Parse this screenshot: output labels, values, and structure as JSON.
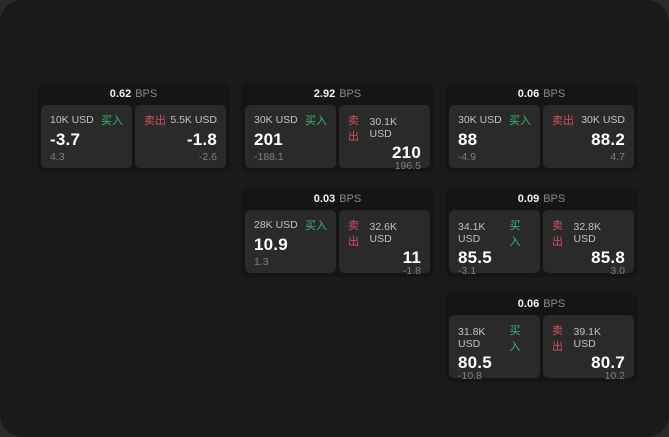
{
  "colors": {
    "background_outer": "#2a2a2a",
    "background_app": "#1a1a1b",
    "card_background": "#151516",
    "panel_background": "#2a2a2b",
    "buy_green": "#38b873",
    "sell_red": "#d4505f"
  },
  "cards": [
    {
      "bps_value": "0.62",
      "bps_unit": "BPS",
      "buy": {
        "amount": "10K USD",
        "side_label": "买入",
        "price": "-3.7",
        "delta": "4.3"
      },
      "sell": {
        "side_label": "卖出",
        "amount": "5.5K USD",
        "price": "-1.8",
        "delta": "-2.6"
      }
    },
    {
      "bps_value": "2.92",
      "bps_unit": "BPS",
      "buy": {
        "amount": "30K USD",
        "side_label": "买入",
        "price": "201",
        "delta": "-188.1"
      },
      "sell": {
        "side_label": "卖出",
        "amount": "30.1K USD",
        "price": "210",
        "delta": "196.5"
      }
    },
    {
      "bps_value": "0.06",
      "bps_unit": "BPS",
      "buy": {
        "amount": "30K USD",
        "side_label": "买入",
        "price": "88",
        "delta": "-4.9"
      },
      "sell": {
        "side_label": "卖出",
        "amount": "30K USD",
        "price": "88.2",
        "delta": "4.7"
      }
    },
    {
      "bps_value": "0.03",
      "bps_unit": "BPS",
      "buy": {
        "amount": "28K USD",
        "side_label": "买入",
        "price": "10.9",
        "delta": "1.3"
      },
      "sell": {
        "side_label": "卖出",
        "amount": "32.6K USD",
        "price": "11",
        "delta": "-1.8"
      }
    },
    {
      "bps_value": "0.09",
      "bps_unit": "BPS",
      "buy": {
        "amount": "34.1K USD",
        "side_label": "买入",
        "price": "85.5",
        "delta": "-3.1"
      },
      "sell": {
        "side_label": "卖出",
        "amount": "32.8K USD",
        "price": "85.8",
        "delta": "3.0"
      }
    },
    {
      "bps_value": "0.06",
      "bps_unit": "BPS",
      "buy": {
        "amount": "31.8K USD",
        "side_label": "买入",
        "price": "80.5",
        "delta": "-10.8"
      },
      "sell": {
        "side_label": "卖出",
        "amount": "39.1K USD",
        "price": "80.7",
        "delta": "10.2"
      }
    }
  ]
}
